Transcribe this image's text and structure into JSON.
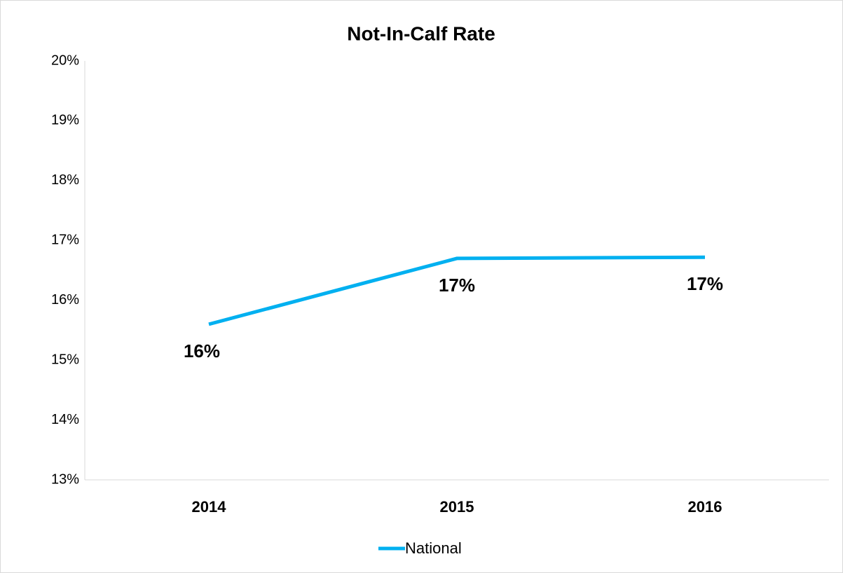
{
  "chart_data": {
    "type": "line",
    "title": "Not-In-Calf Rate",
    "categories": [
      "2014",
      "2015",
      "2016"
    ],
    "series": [
      {
        "name": "National",
        "color": "#00b0f0",
        "values": [
          15.6,
          16.7,
          16.72
        ],
        "value_labels": [
          "16%",
          "17%",
          "17%"
        ]
      }
    ],
    "ylim": [
      13,
      20
    ],
    "yticks": [
      {
        "value": 13,
        "label": "13%"
      },
      {
        "value": 14,
        "label": "14%"
      },
      {
        "value": 15,
        "label": "15%"
      },
      {
        "value": 16,
        "label": "16%"
      },
      {
        "value": 17,
        "label": "17%"
      },
      {
        "value": 18,
        "label": "18%"
      },
      {
        "value": 19,
        "label": "19%"
      },
      {
        "value": 20,
        "label": "20%"
      }
    ],
    "grid": false,
    "legend": "bottom"
  }
}
